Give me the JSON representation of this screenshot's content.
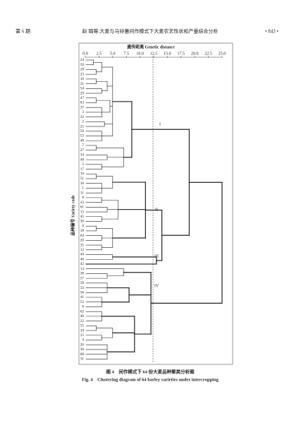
{
  "header": {
    "issue": "第 6 期",
    "title": "赵 璐等:大麦与马铃薯间作模式下大麦农艺性状和产量综合分析",
    "page": "• 843 •"
  },
  "figure": {
    "axis_title": "遗传距离 Genetic distance",
    "xticks": [
      "0.0",
      "2.5",
      "5.0",
      "7.5",
      "10.0",
      "12.5",
      "15.0",
      "17.5",
      "20.0",
      "22.5",
      "25.0"
    ],
    "y_axis_title": "品种编号 Variety code",
    "leaves": [
      24,
      59,
      28,
      23,
      16,
      21,
      54,
      29,
      47,
      63,
      37,
      3,
      32,
      2,
      25,
      50,
      53,
      49,
      7,
      27,
      34,
      48,
      5,
      17,
      19,
      51,
      10,
      1,
      11,
      8,
      43,
      61,
      13,
      45,
      36,
      9,
      18,
      64,
      20,
      35,
      12,
      44,
      46,
      42,
      14,
      38,
      57,
      58,
      33,
      56,
      41,
      52,
      6,
      62,
      40,
      22,
      55,
      39,
      15,
      4,
      26,
      30,
      60,
      31
    ],
    "clusters": [
      "I",
      "II",
      "III",
      "IV"
    ],
    "caption_cn": "图 4　间作模式下 64 份大麦品种聚类分析图",
    "caption_en": "Fig. 4　Clustering diagram of 64 barley varieties under intercropping"
  }
}
